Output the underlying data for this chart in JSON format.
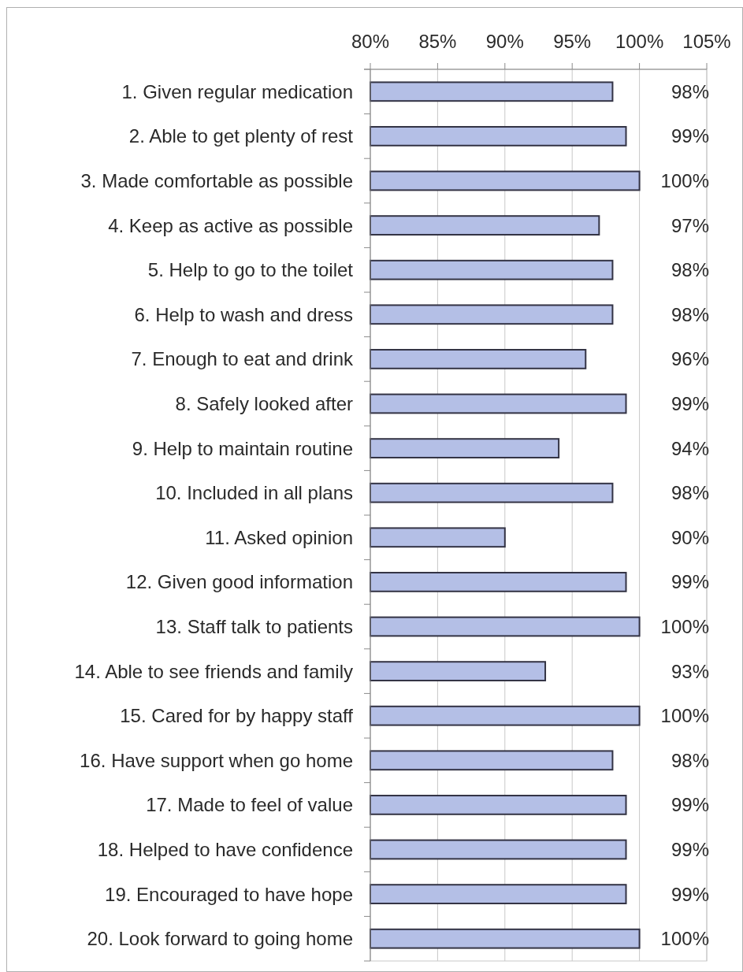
{
  "chart_data": {
    "type": "bar",
    "orientation": "horizontal",
    "categories": [
      "1. Given regular medication",
      "2. Able to get plenty of rest",
      "3. Made comfortable as possible",
      "4. Keep as active as possible",
      "5. Help to go to the toilet",
      "6. Help to wash and dress",
      "7. Enough to eat and drink",
      "8. Safely looked after",
      "9. Help to maintain routine",
      "10. Included in all plans",
      "11. Asked opinion",
      "12. Given good information",
      "13. Staff talk to patients",
      "14. Able to see friends and family",
      "15. Cared for by happy staff",
      "16. Have support when go home",
      "17. Made to feel of value",
      "18. Helped to have confidence",
      "19. Encouraged to have hope",
      "20. Look forward to going home"
    ],
    "values": [
      98,
      99,
      100,
      97,
      98,
      98,
      96,
      99,
      94,
      98,
      90,
      99,
      100,
      93,
      100,
      98,
      99,
      99,
      99,
      100
    ],
    "value_labels": [
      "98%",
      "99%",
      "100%",
      "97%",
      "98%",
      "98%",
      "96%",
      "99%",
      "94%",
      "98%",
      "90%",
      "99%",
      "100%",
      "93%",
      "100%",
      "98%",
      "99%",
      "99%",
      "99%",
      "100%"
    ],
    "color": "#b4bfe6",
    "xlim": [
      80,
      105
    ],
    "xticks": [
      {
        "value": 80,
        "label": "80%"
      },
      {
        "value": 85,
        "label": "85%"
      },
      {
        "value": 90,
        "label": "90%"
      },
      {
        "value": 95,
        "label": "95%"
      },
      {
        "value": 100,
        "label": "100%"
      },
      {
        "value": 105,
        "label": "105%"
      }
    ],
    "grid": "x"
  }
}
